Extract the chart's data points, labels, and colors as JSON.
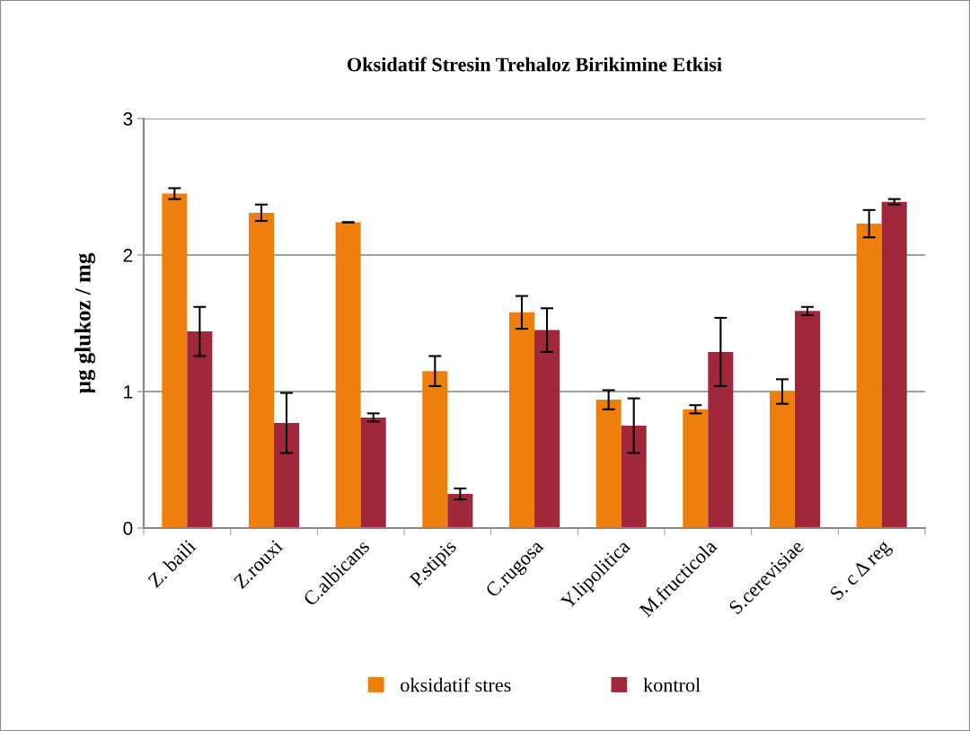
{
  "chart_data": {
    "type": "bar",
    "title": "Oksidatif Stresin Trehaloz Birikimine Etkisi",
    "ylabel": "µg glukoz / mg",
    "categories": [
      "Z. baili",
      "Z.rouxi",
      "C.albicans",
      "P.stipis",
      "C.rugosa",
      "Y.lipolitica",
      "M.fructicola",
      "S.cerevisiae",
      "S. c Δ reg"
    ],
    "series": [
      {
        "name": "oksidatif stres",
        "color": "#ef7f0c",
        "values": [
          2.45,
          2.31,
          2.24,
          1.15,
          1.58,
          0.94,
          0.87,
          1.0,
          2.23
        ],
        "errors": [
          0.04,
          0.06,
          0.0,
          0.11,
          0.12,
          0.07,
          0.03,
          0.09,
          0.1
        ]
      },
      {
        "name": "kontrol",
        "color": "#a0283a",
        "values": [
          1.44,
          0.77,
          0.81,
          0.25,
          1.45,
          0.75,
          1.29,
          1.59,
          2.39
        ],
        "errors": [
          0.18,
          0.22,
          0.03,
          0.04,
          0.16,
          0.2,
          0.25,
          0.03,
          0.02
        ]
      }
    ],
    "ylim": [
      0,
      3
    ],
    "yticks": [
      0,
      1,
      2,
      3
    ],
    "grid": "y",
    "legend": "bottom"
  }
}
